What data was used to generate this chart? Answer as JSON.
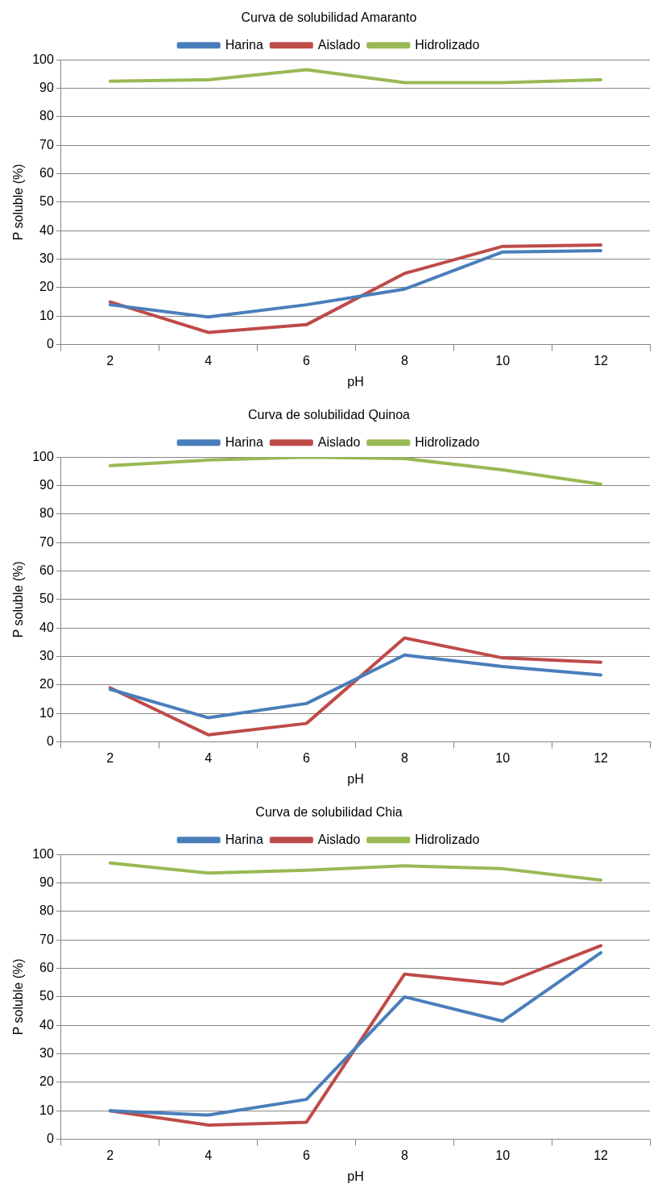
{
  "chart_data": [
    {
      "type": "line",
      "title": "Curva de solubilidad Amaranto",
      "xlabel": "pH",
      "ylabel": "P soluble (%)",
      "categories": [
        "2",
        "4",
        "6",
        "8",
        "10",
        "12"
      ],
      "ylim": [
        0,
        100
      ],
      "yticks": [
        0,
        10,
        20,
        30,
        40,
        50,
        60,
        70,
        80,
        90,
        100
      ],
      "grid": "y",
      "legend": "top",
      "marker": "none",
      "series": [
        {
          "name": "Harina",
          "color": "#4a7ebb",
          "values": [
            14,
            9.7,
            14,
            19.5,
            32.5,
            33
          ]
        },
        {
          "name": "Aislado",
          "color": "#be4b48",
          "values": [
            15,
            4.3,
            7,
            25,
            34.5,
            35
          ]
        },
        {
          "name": "Hidrolizado",
          "color": "#98b954",
          "values": [
            92.5,
            93,
            96.5,
            92,
            92,
            93
          ]
        }
      ]
    },
    {
      "type": "line",
      "title": "Curva de solubilidad Quinoa",
      "xlabel": "pH",
      "ylabel": "P soluble (%)",
      "categories": [
        "2",
        "4",
        "6",
        "8",
        "10",
        "12"
      ],
      "ylim": [
        0,
        100
      ],
      "yticks": [
        0,
        10,
        20,
        30,
        40,
        50,
        60,
        70,
        80,
        90,
        100
      ],
      "grid": "y",
      "legend": "top",
      "marker": "none",
      "series": [
        {
          "name": "Harina",
          "color": "#4a7ebb",
          "values": [
            18.5,
            8.5,
            13.5,
            30.5,
            26.5,
            23.5
          ]
        },
        {
          "name": "Aislado",
          "color": "#be4b48",
          "values": [
            19,
            2.5,
            6.5,
            36.5,
            29.5,
            28
          ]
        },
        {
          "name": "Hidrolizado",
          "color": "#98b954",
          "values": [
            97,
            99,
            100,
            99.5,
            95.5,
            90.5
          ]
        }
      ]
    },
    {
      "type": "line",
      "title": "Curva de solubilidad Chia",
      "xlabel": "pH",
      "ylabel": "P soluble (%)",
      "categories": [
        "2",
        "4",
        "6",
        "8",
        "10",
        "12"
      ],
      "ylim": [
        0,
        100
      ],
      "yticks": [
        0,
        10,
        20,
        30,
        40,
        50,
        60,
        70,
        80,
        90,
        100
      ],
      "grid": "y",
      "legend": "top",
      "marker": "none",
      "series": [
        {
          "name": "Harina",
          "color": "#4a7ebb",
          "values": [
            10,
            8.5,
            14,
            50,
            41.5,
            65.5
          ]
        },
        {
          "name": "Aislado",
          "color": "#be4b48",
          "values": [
            10,
            5,
            6,
            58,
            54.5,
            68
          ]
        },
        {
          "name": "Hidrolizado",
          "color": "#98b954",
          "values": [
            97,
            93.5,
            94.5,
            96,
            95,
            91
          ]
        }
      ]
    }
  ]
}
